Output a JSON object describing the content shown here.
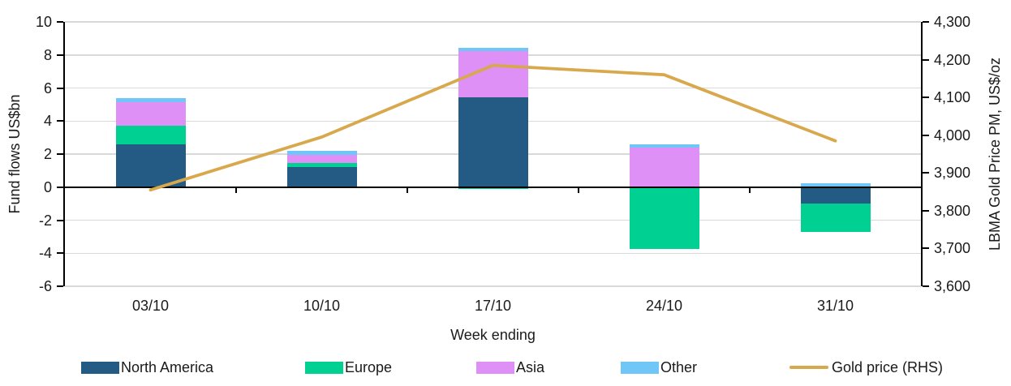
{
  "chart_data": {
    "type": "bar",
    "subtype": "stacked-column-with-line-combo",
    "categories": [
      "03/10",
      "10/10",
      "17/10",
      "24/10",
      "31/10"
    ],
    "series": [
      {
        "name": "North America",
        "type": "bar",
        "axis": "left",
        "color": "#235B85",
        "values": [
          2.6,
          1.2,
          5.45,
          0,
          -1.0
        ]
      },
      {
        "name": "Europe",
        "type": "bar",
        "axis": "left",
        "color": "#00D193",
        "values": [
          1.1,
          0.25,
          -0.1,
          -3.75,
          -1.7
        ]
      },
      {
        "name": "Asia",
        "type": "bar",
        "axis": "left",
        "color": "#DE90F6",
        "values": [
          1.45,
          0.5,
          2.8,
          2.4,
          0.05
        ]
      },
      {
        "name": "Other",
        "type": "bar",
        "axis": "left",
        "color": "#70C6F6",
        "values": [
          0.25,
          0.25,
          0.2,
          0.2,
          0.2
        ]
      },
      {
        "name": "Gold price (RHS)",
        "type": "line",
        "axis": "right",
        "color": "#D8A84C",
        "values": [
          3855,
          3995,
          4185,
          4160,
          3985
        ]
      }
    ],
    "xlabel": "Week ending",
    "left_axis": {
      "label": "Fund flows US$bn",
      "min": -6,
      "max": 10,
      "step": 2,
      "ticks": [
        "10",
        "8",
        "6",
        "4",
        "2",
        "0",
        "-2",
        "-4",
        "-6"
      ]
    },
    "right_axis": {
      "label": "LBMA Gold Price PM, US$/oz",
      "min": 3600,
      "max": 4300,
      "step": 100,
      "ticks": [
        "4,300",
        "4,200",
        "4,100",
        "4,000",
        "3,900",
        "3,800",
        "3,700",
        "3,600"
      ]
    },
    "grid": true,
    "legend_position": "bottom"
  },
  "colors": {
    "gridline": "#D9D9D9",
    "axis": "#000000",
    "text": "#1A1A1A",
    "background": "#FFFFFF"
  }
}
